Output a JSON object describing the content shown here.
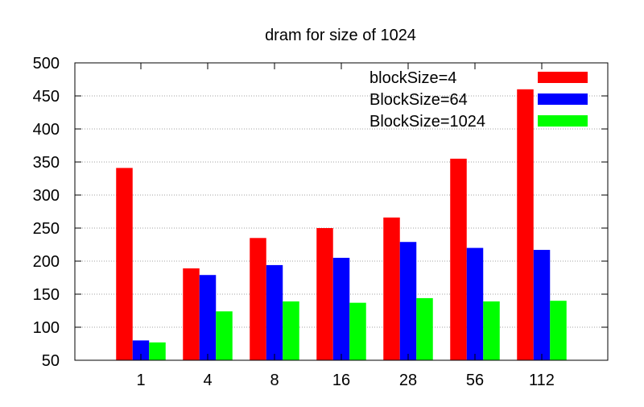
{
  "chart_data": {
    "type": "bar",
    "title": "dram for size of 1024",
    "xlabel": "",
    "ylabel": "",
    "categories": [
      "1",
      "4",
      "8",
      "16",
      "28",
      "56",
      "112"
    ],
    "ylim": [
      50,
      500
    ],
    "yticks": [
      50,
      100,
      150,
      200,
      250,
      300,
      350,
      400,
      450,
      500
    ],
    "grid": true,
    "legend_position": "top-right",
    "series": [
      {
        "name": "blockSize=4",
        "color": "#ff0000",
        "values": [
          341,
          189,
          235,
          250,
          266,
          355,
          460
        ]
      },
      {
        "name": "BlockSize=64",
        "color": "#0000ff",
        "values": [
          80,
          179,
          194,
          205,
          229,
          220,
          217
        ]
      },
      {
        "name": "BlockSize=1024",
        "color": "#00ff00",
        "values": [
          77,
          124,
          139,
          137,
          144,
          139,
          140
        ]
      }
    ]
  }
}
